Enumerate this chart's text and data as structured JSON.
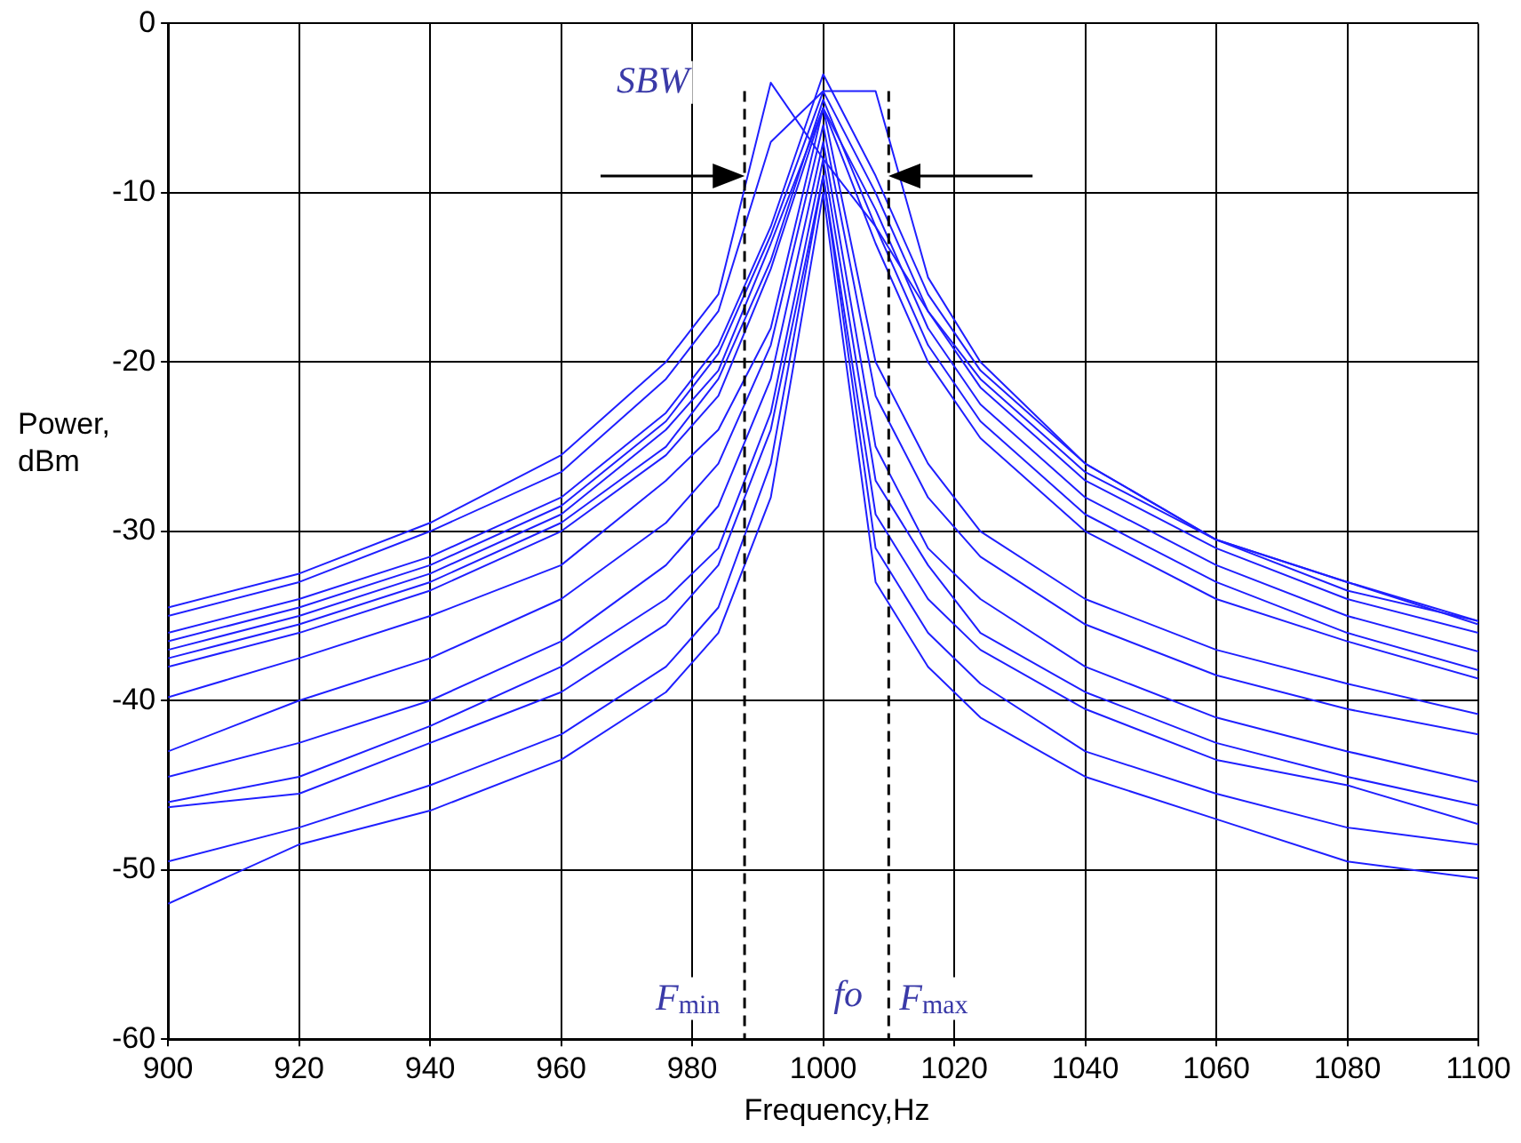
{
  "chart_data": {
    "type": "line",
    "xlabel": "Frequency,Hz",
    "ylabel": "Power, dBm",
    "x": [
      900,
      920,
      940,
      960,
      976,
      984,
      992,
      1000,
      1008,
      1016,
      1024,
      1040,
      1060,
      1080,
      1100
    ],
    "xlim": [
      900,
      1100
    ],
    "xticks": [
      900,
      920,
      940,
      960,
      980,
      1000,
      1020,
      1040,
      1060,
      1080,
      1100
    ],
    "ylim": [
      -60,
      0
    ],
    "yticks": [
      -60,
      -50,
      -40,
      -30,
      -20,
      -10,
      0
    ],
    "grid": true,
    "legend": false,
    "marker": "none",
    "line_style": "solid",
    "series": [
      {
        "color": "#1f1fff",
        "values": [
          -34.5,
          -32.5,
          -29.5,
          -25.5,
          -20,
          -16,
          -3.5,
          -8,
          -12,
          -17,
          -21,
          -26.5,
          -30.5,
          -33,
          -35.3
        ]
      },
      {
        "color": "#1f1fff",
        "values": [
          -35,
          -33,
          -30,
          -26.5,
          -21,
          -17,
          -7,
          -4,
          -4,
          -15,
          -20,
          -26,
          -30.5,
          -33,
          -35.5
        ]
      },
      {
        "color": "#1f1fff",
        "values": [
          -36,
          -34,
          -31.5,
          -28,
          -23,
          -19,
          -12,
          -3,
          -9,
          -16,
          -20.5,
          -26,
          -30.5,
          -33.5,
          -35.3
        ]
      },
      {
        "color": "#1f1fff",
        "values": [
          -36.5,
          -34.5,
          -32,
          -28.5,
          -23.5,
          -19.5,
          -12.5,
          -4,
          -10,
          -17,
          -21.5,
          -27,
          -31,
          -34,
          -36
        ]
      },
      {
        "color": "#1f1fff",
        "values": [
          -37,
          -35,
          -32.5,
          -29,
          -24,
          -20.5,
          -13,
          -5,
          -11,
          -18,
          -22.5,
          -28,
          -32,
          -35,
          -37.1
        ]
      },
      {
        "color": "#1f1fff",
        "values": [
          -37.5,
          -35.5,
          -33,
          -29.5,
          -25,
          -21,
          -14,
          -4.5,
          -12,
          -19,
          -23.5,
          -29,
          -33,
          -36,
          -38.2
        ]
      },
      {
        "color": "#1f1fff",
        "values": [
          -38,
          -36,
          -33.5,
          -30,
          -25.5,
          -22,
          -14.5,
          -5,
          -13,
          -20,
          -24.5,
          -30,
          -34,
          -36.5,
          -38.7
        ]
      },
      {
        "color": "#1f1fff",
        "values": [
          -39.8,
          -37.5,
          -35,
          -32,
          -27,
          -24,
          -18,
          -5,
          -20,
          -26,
          -30,
          -34,
          -37,
          -39,
          -40.8
        ]
      },
      {
        "color": "#1f1fff",
        "values": [
          -43,
          -40,
          -37.5,
          -34,
          -29.5,
          -26,
          -19,
          -6,
          -22,
          -28,
          -31.5,
          -35.5,
          -38.5,
          -40.5,
          -42
        ]
      },
      {
        "color": "#1f1fff",
        "values": [
          -44.5,
          -42.5,
          -40,
          -36.5,
          -32,
          -28.5,
          -21,
          -7,
          -25,
          -31,
          -34,
          -38,
          -41,
          -43,
          -44.8
        ]
      },
      {
        "color": "#1f1fff",
        "values": [
          -46,
          -44.5,
          -41.5,
          -38,
          -34,
          -31,
          -23,
          -8,
          -27,
          -32,
          -36,
          -39.5,
          -42.5,
          -44.5,
          -46.2
        ]
      },
      {
        "color": "#1f1fff",
        "values": [
          -46.3,
          -45.5,
          -42.5,
          -39.5,
          -35.5,
          -32,
          -24,
          -9,
          -29,
          -34,
          -37,
          -40.5,
          -43.5,
          -45,
          -47.3
        ]
      },
      {
        "color": "#1f1fff",
        "values": [
          -49.5,
          -47.5,
          -45,
          -42,
          -38,
          -34.5,
          -26,
          -9,
          -31,
          -36,
          -39,
          -43,
          -45.5,
          -47.5,
          -48.5
        ]
      },
      {
        "color": "#1f1fff",
        "values": [
          -52,
          -48.5,
          -46.5,
          -43.5,
          -39.5,
          -36,
          -28,
          -10,
          -33,
          -38,
          -41,
          -44.5,
          -47,
          -49.5,
          -50.5
        ]
      }
    ],
    "ref_lines": [
      {
        "axis": "x",
        "value": 988,
        "label": "F$_{min}$",
        "color": "#000000",
        "line_style": "dashed"
      },
      {
        "axis": "x",
        "value": 1010,
        "label": "F$_{max}$",
        "color": "#000000",
        "line_style": "dashed"
      }
    ],
    "annotations": [
      "fo",
      "SBW"
    ]
  }
}
